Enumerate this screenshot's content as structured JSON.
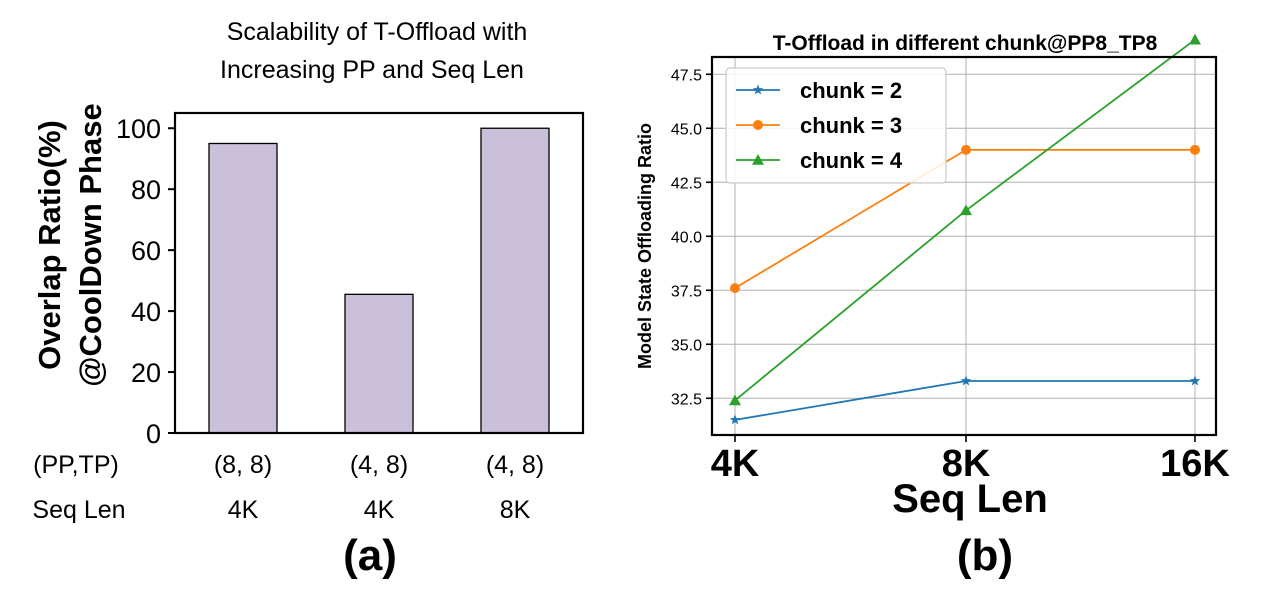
{
  "chart_data": [
    {
      "type": "bar",
      "title_lines": [
        "Scalability of T-Offload  with",
        "Increasing PP and Seq Len"
      ],
      "ylabel_lines": [
        "Overlap Ratio(%)",
        "@CoolDown Phase"
      ],
      "ylim": [
        0,
        105
      ],
      "yticks": [
        "0",
        "20",
        "40",
        "60",
        "80",
        "100"
      ],
      "row_labels": [
        "(PP,TP)",
        "Seq Len"
      ],
      "categories": [
        {
          "pp_tp": "(8, 8)",
          "seq_len": "4K"
        },
        {
          "pp_tp": "(4, 8)",
          "seq_len": "4K"
        },
        {
          "pp_tp": "(4, 8)",
          "seq_len": "8K"
        }
      ],
      "values": [
        95,
        45.5,
        100
      ],
      "bar_color": "#cbc0d9",
      "caption": "(a)"
    },
    {
      "type": "line",
      "title": "T-Offload in different chunk@PP8_TP8",
      "xlabel": "Seq Len",
      "ylabel": "Model State Offloading Ratio",
      "categories": [
        "4K",
        "8K",
        "16K"
      ],
      "ylim": [
        30.8,
        48.3
      ],
      "yticks": [
        "32.5",
        "35.0",
        "37.5",
        "40.0",
        "42.5",
        "45.0",
        "47.5"
      ],
      "grid": true,
      "legend_position": "top-left",
      "series": [
        {
          "name": "chunk = 2",
          "values": [
            31.5,
            33.3,
            33.3
          ],
          "color": "#1f77b4",
          "marker": "star"
        },
        {
          "name": "chunk = 3",
          "values": [
            37.6,
            44.0,
            44.0
          ],
          "color": "#ff7f0e",
          "marker": "circle"
        },
        {
          "name": "chunk = 4",
          "values": [
            32.4,
            41.2,
            49.1
          ],
          "color": "#2ca02c",
          "marker": "triangle"
        }
      ],
      "caption": "(b)"
    }
  ]
}
